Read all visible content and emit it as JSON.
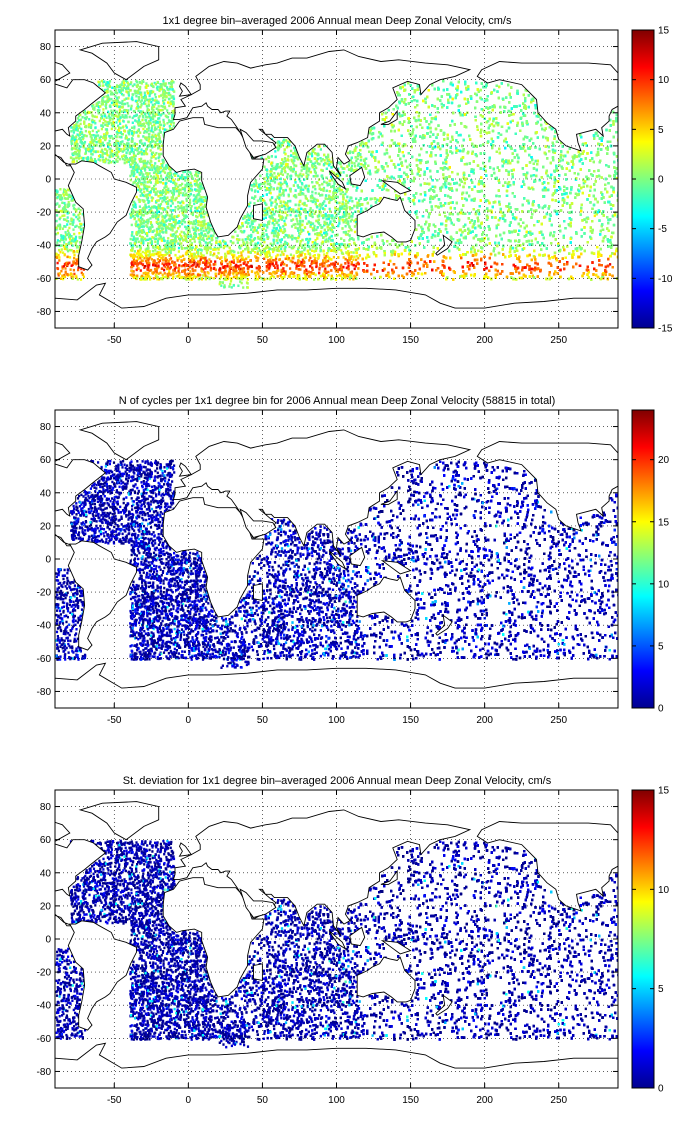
{
  "chart_data": [
    {
      "type": "heatmap",
      "title": "1x1 degree bin–averaged 2006 Annual mean Deep Zonal Velocity, cm/s",
      "xticks": [
        "-50",
        "0",
        "50",
        "100",
        "150",
        "200",
        "250"
      ],
      "yticks": [
        "80",
        "60",
        "40",
        "20",
        "0",
        "-20",
        "-40",
        "-60",
        "-80"
      ],
      "xlim": [
        -90,
        290
      ],
      "ylim": [
        -90,
        90
      ],
      "grid": true,
      "colorbar": {
        "ticks": [
          "15",
          "10",
          "5",
          "0",
          "-5",
          "-10",
          "-15"
        ],
        "range": [
          -15,
          15
        ],
        "colormap": "jet"
      }
    },
    {
      "type": "heatmap",
      "title": "N of cycles per 1x1 degree bin for 2006 Annual mean Deep Zonal Velocity (58815 in total)",
      "xticks": [
        "-50",
        "0",
        "50",
        "100",
        "150",
        "200",
        "250"
      ],
      "yticks": [
        "80",
        "60",
        "40",
        "20",
        "0",
        "-20",
        "-40",
        "-60",
        "-80"
      ],
      "xlim": [
        -90,
        290
      ],
      "ylim": [
        -90,
        90
      ],
      "grid": true,
      "colorbar": {
        "ticks": [
          "20",
          "15",
          "10",
          "5",
          "0"
        ],
        "range": [
          0,
          24
        ],
        "colormap": "jet"
      }
    },
    {
      "type": "heatmap",
      "title": "St. deviation for 1x1 degree bin–averaged 2006 Annual mean Deep Zonal Velocity, cm/s",
      "xticks": [
        "-50",
        "0",
        "50",
        "100",
        "150",
        "200",
        "250"
      ],
      "yticks": [
        "80",
        "60",
        "40",
        "20",
        "0",
        "-20",
        "-40",
        "-60",
        "-80"
      ],
      "xlim": [
        -90,
        290
      ],
      "ylim": [
        -90,
        90
      ],
      "grid": true,
      "colorbar": {
        "ticks": [
          "15",
          "10",
          "5",
          "0"
        ],
        "range": [
          0,
          15
        ],
        "colormap": "jet"
      }
    }
  ]
}
